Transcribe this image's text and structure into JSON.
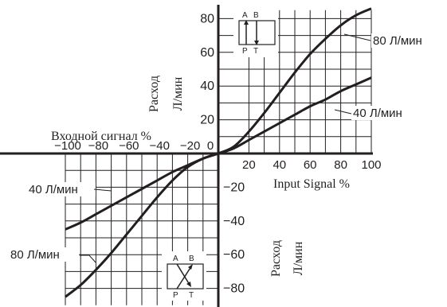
{
  "chart_data": {
    "type": "line",
    "x_label_en": "Input Signal   %",
    "x_label_ru": "Входной сигнал   %",
    "y_label_top": [
      "Расход",
      "Л/мин"
    ],
    "y_label_bottom": [
      "Расход",
      "Л/мин"
    ],
    "x_ticks_pos": [
      "20",
      "40",
      "60",
      "80",
      "100"
    ],
    "x_ticks_neg": [
      "−100",
      "−80",
      "−60",
      "−40",
      "−20",
      "0"
    ],
    "y_ticks_pos": [
      "80",
      "60",
      "40",
      "20"
    ],
    "y_ticks_neg": [
      "−20",
      "−40",
      "−60",
      "−80"
    ],
    "xlim": [
      -100,
      100
    ],
    "ylim": [
      -90,
      90
    ],
    "series": [
      {
        "name": "80 Л/мин",
        "x": [
          -100,
          -90,
          -80,
          -70,
          -60,
          -50,
          -40,
          -30,
          -20,
          -10,
          0,
          10,
          20,
          30,
          40,
          50,
          60,
          70,
          80,
          90,
          100
        ],
        "y": [
          -85,
          -78,
          -69,
          -59,
          -48,
          -37,
          -26,
          -16,
          -8,
          -3,
          0,
          4,
          13,
          24,
          36,
          48,
          59,
          68,
          76,
          82,
          86
        ]
      },
      {
        "name": "40 Л/мин",
        "x": [
          -100,
          -90,
          -80,
          -70,
          -60,
          -50,
          -40,
          -30,
          -20,
          -10,
          0,
          10,
          20,
          30,
          40,
          50,
          60,
          70,
          80,
          90,
          100
        ],
        "y": [
          -45,
          -41,
          -36,
          -31,
          -26,
          -21,
          -16,
          -11,
          -7,
          -3,
          0,
          3,
          8,
          13,
          18,
          23,
          28,
          32,
          37,
          41,
          45
        ]
      }
    ],
    "series_labels": {
      "top_80": "80 Л/мин",
      "top_40": "40 Л/мин",
      "bottom_40": "40 Л/мин",
      "bottom_80": "80 Л/мин"
    },
    "valve_top": {
      "a": "A",
      "b": "B",
      "p": "P",
      "t": "T"
    },
    "valve_bottom": {
      "a": "A",
      "b": "B",
      "p": "P",
      "t": "T"
    },
    "grid": true
  }
}
